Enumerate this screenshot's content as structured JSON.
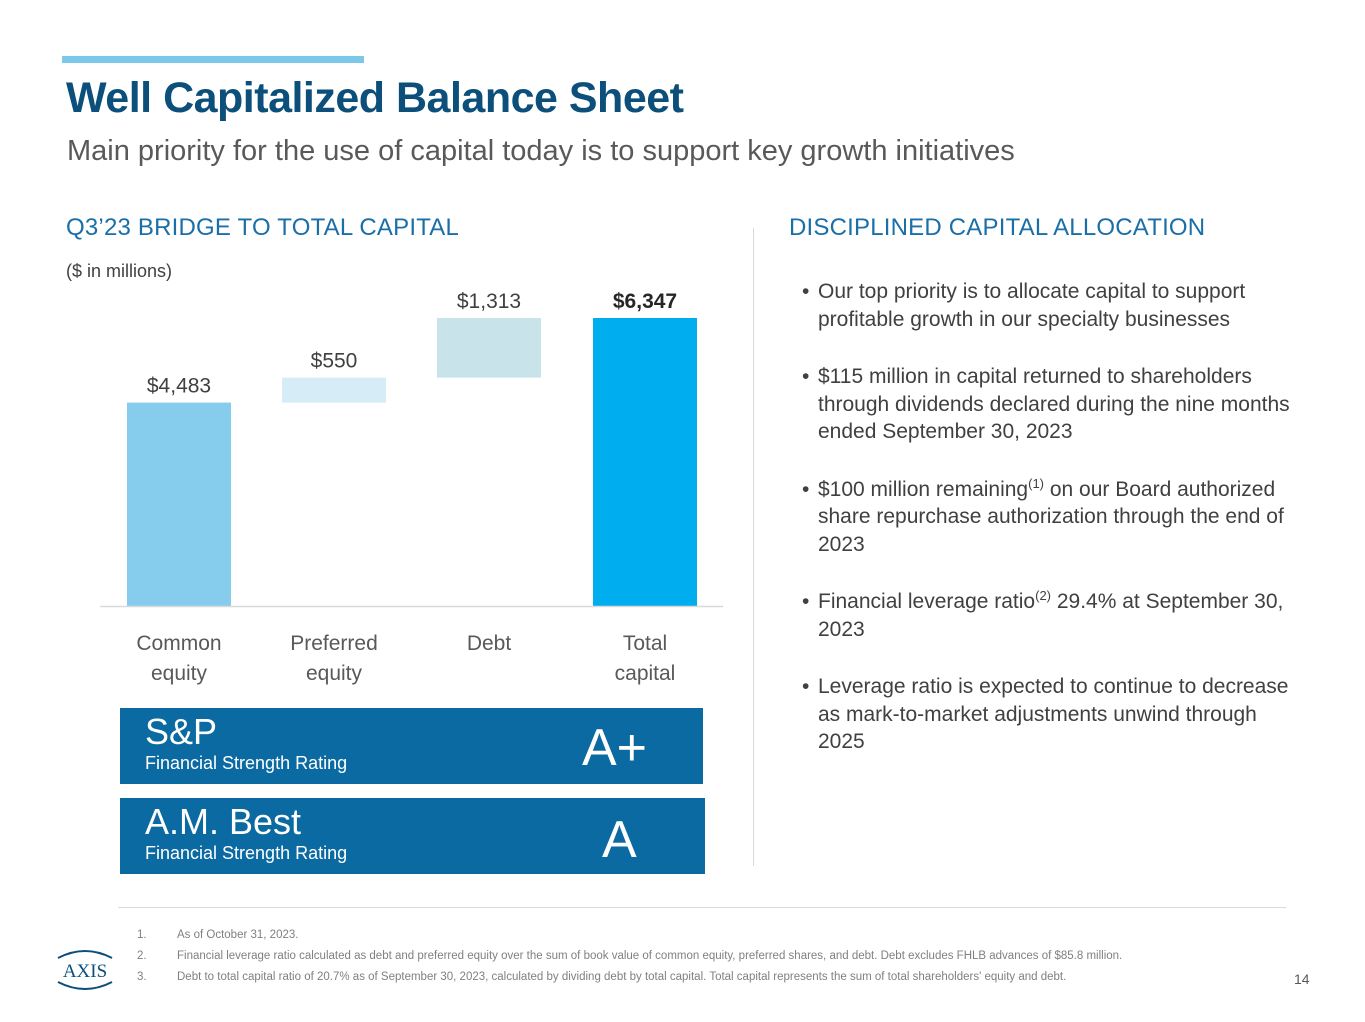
{
  "slide": {
    "title": "Well Capitalized Balance Sheet",
    "subtitle": "Main priority for the use of capital today is to support key growth initiatives",
    "page_number": "14"
  },
  "left": {
    "heading": "Q3’23 BRIDGE TO TOTAL CAPITAL",
    "units": "($ in millions)"
  },
  "chart_data": {
    "type": "bar",
    "subtype": "waterfall",
    "title": "Q3’23 BRIDGE TO TOTAL CAPITAL",
    "ylabel": "($ in millions)",
    "categories": [
      [
        "Common",
        "equity"
      ],
      [
        "Preferred",
        "equity"
      ],
      [
        "Debt"
      ],
      [
        "Total",
        "capital"
      ]
    ],
    "values": [
      4483,
      550,
      1313,
      6347
    ],
    "labels": [
      "$4,483",
      "$550",
      "$1,313",
      "$6,347"
    ],
    "kinds": [
      "total",
      "increment",
      "increment",
      "total"
    ],
    "ylim": [
      0,
      6800
    ],
    "grid": false,
    "colors": [
      "#86ccec",
      "#d6ecf7",
      "#c8e4ea",
      "#00aeef"
    ],
    "axis_color": "#d9d9d9"
  },
  "ratings": [
    {
      "agency": "S&P",
      "subtitle": "Financial Strength Rating",
      "grade": "A+"
    },
    {
      "agency": "A.M. Best",
      "subtitle": "Financial Strength Rating",
      "grade": "A"
    }
  ],
  "right": {
    "heading": "DISCIPLINED CAPITAL ALLOCATION",
    "bullets": [
      {
        "pre": "Our top priority is to allocate capital to support profitable growth in our specialty businesses"
      },
      {
        "pre": "$115 million in capital returned to shareholders through dividends declared during the nine months ended September 30, 2023"
      },
      {
        "pre": "$100 million remaining",
        "sup": "(1)",
        "post": " on our Board authorized share repurchase authorization through the end of 2023"
      },
      {
        "pre": "Financial leverage ratio",
        "sup": "(2)",
        "post": " 29.4% at September 30, 2023"
      },
      {
        "pre": "Leverage ratio is expected to continue to decrease as mark-to-market adjustments unwind through 2025"
      }
    ]
  },
  "footnotes": [
    {
      "num": "1.",
      "text": "As of October 31, 2023."
    },
    {
      "num": "2.",
      "text": "Financial leverage ratio calculated as debt and preferred equity over the sum of book value of common equity, preferred shares, and debt.  Debt excludes FHLB advances of $85.8 million."
    },
    {
      "num": "3.",
      "text": "Debt to total capital ratio of 20.7% as of September 30, 2023, calculated by dividing debt by total capital. Total capital represents the sum of total shareholders' equity and debt."
    }
  ],
  "logo": {
    "text": "AXIS",
    "icon": "axis-logo-icon",
    "color": "#0b4f7a"
  }
}
